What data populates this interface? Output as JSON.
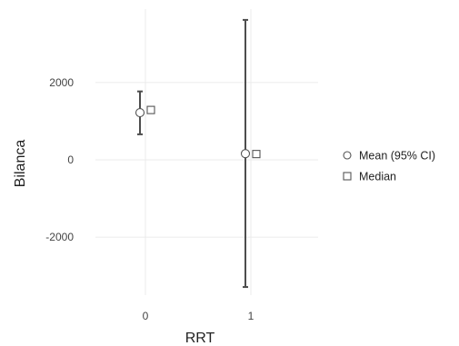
{
  "chart_data": {
    "type": "scatter",
    "title": "",
    "xlabel": "RRT",
    "ylabel": "Bilanca",
    "categories": [
      "0",
      "1"
    ],
    "y_ticks": [
      -2000,
      0,
      2000
    ],
    "y_tick_labels": [
      "-2000",
      "0",
      "2000"
    ],
    "ylim": [
      -3500,
      3900
    ],
    "grid": true,
    "legend_position": "right",
    "series": [
      {
        "name": "Mean (95% CI)",
        "marker": "circle",
        "values": [
          1220,
          160
        ],
        "ci_lower": [
          660,
          -3290
        ],
        "ci_upper": [
          1770,
          3620
        ]
      },
      {
        "name": "Median",
        "marker": "square",
        "values": [
          1290,
          150
        ]
      }
    ],
    "colors": {
      "errorbar": "#4d4d4d",
      "marker_stroke": "#555555",
      "marker_fill": "#ffffff",
      "grid": "#ebebeb"
    }
  }
}
